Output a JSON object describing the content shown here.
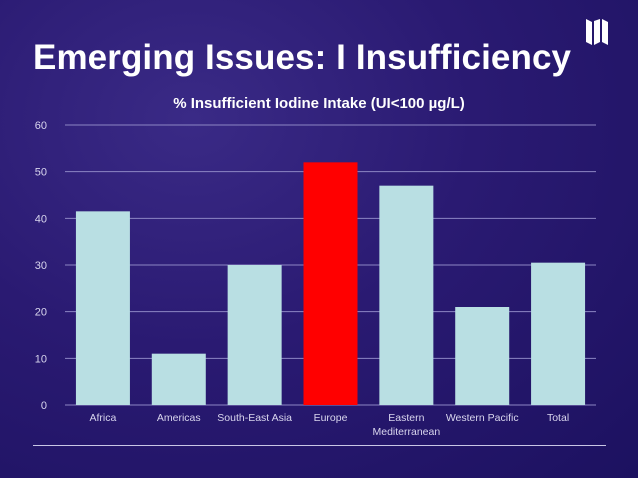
{
  "slide": {
    "title": "Emerging Issues: I Insufficiency"
  },
  "logo_icon": "book-emblem-icon",
  "colors": {
    "background": "#2a1a72",
    "bar_default": "#b9dfe3",
    "bar_highlight": "#ff0000",
    "gridline": "#8d86c4",
    "axis_text": "#d9d6ee"
  },
  "chart_data": {
    "type": "bar",
    "title": "% Insufficient Iodine Intake (UI<100 µg/L)",
    "categories": [
      [
        "Africa"
      ],
      [
        "Americas"
      ],
      [
        "South-East Asia"
      ],
      [
        "Europe"
      ],
      [
        "Eastern",
        "Mediterranean"
      ],
      [
        "Western Pacific"
      ],
      [
        "Total"
      ]
    ],
    "values": [
      41.5,
      11,
      30,
      52,
      47,
      21,
      30.5
    ],
    "highlight_index": 3,
    "ylim": [
      0,
      60
    ],
    "yticks": [
      0,
      10,
      20,
      30,
      40,
      50,
      60
    ],
    "grid": true,
    "xlabel": "",
    "ylabel": ""
  }
}
